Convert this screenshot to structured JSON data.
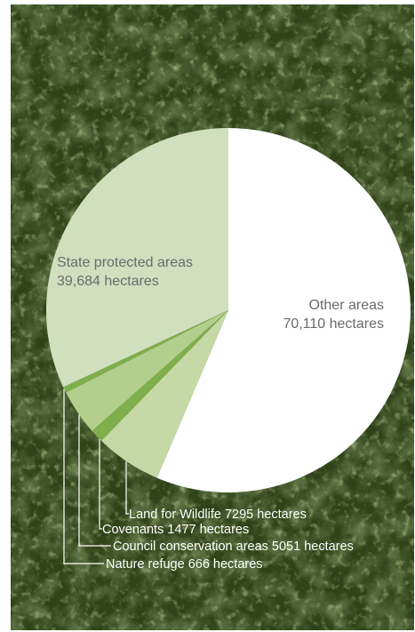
{
  "chart_data": {
    "type": "pie",
    "unit": "hectares",
    "slices": [
      {
        "name": "Other areas",
        "value": 70110,
        "value_label": "70,110 hectares",
        "color": "#ffffff"
      },
      {
        "name": "Land for Wildlife",
        "value": 7295,
        "value_label": "7295 hectares",
        "color": "#c5d9a6"
      },
      {
        "name": "Covenants",
        "value": 1477,
        "value_label": "1477 hectares",
        "color": "#7fae4c"
      },
      {
        "name": "Council conservation areas",
        "value": 5051,
        "value_label": "5051 hectares",
        "color": "#b2cf8e"
      },
      {
        "name": "Nature refuge",
        "value": 666,
        "value_label": "666 hectares",
        "color": "#7fae4c"
      },
      {
        "name": "State protected areas",
        "value": 39684,
        "value_label": "39,684 hectares",
        "color": "#d2dfbf"
      }
    ],
    "callouts": [
      "Land for Wildlife 7295 hectares",
      "Covenants 1477 hectares",
      "Council conservation areas 5051 hectares",
      "Nature refuge 666 hectares"
    ]
  },
  "colors": {
    "forest_dark": "#1e2c12",
    "forest_mid": "#4a6128",
    "forest_light": "#7c9a46",
    "label_text": "#6a6a6a"
  }
}
